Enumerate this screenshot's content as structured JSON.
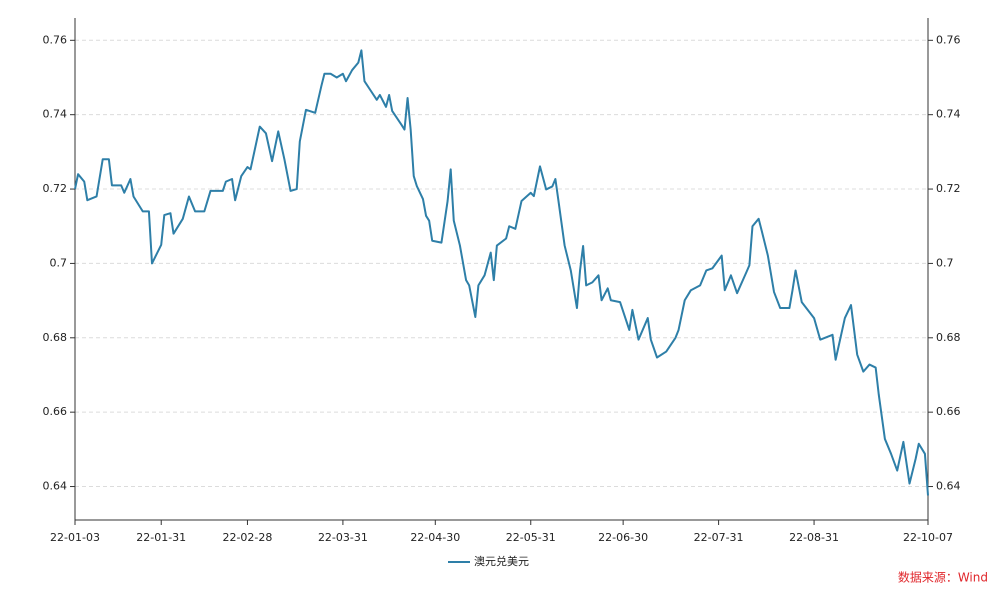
{
  "chart_data": {
    "type": "line",
    "x": [
      "22-01-03",
      "22-01-04",
      "22-01-06",
      "22-01-07",
      "22-01-10",
      "22-01-12",
      "22-01-14",
      "22-01-15",
      "22-01-18",
      "22-01-19",
      "22-01-21",
      "22-01-22",
      "22-01-25",
      "22-01-27",
      "22-01-28",
      "22-01-31",
      "22-02-01",
      "22-02-03",
      "22-02-04",
      "22-02-07",
      "22-02-09",
      "22-02-11",
      "22-02-14",
      "22-02-16",
      "22-02-20",
      "22-02-21",
      "22-02-23",
      "22-02-24",
      "22-02-26",
      "22-02-28",
      "22-03-01",
      "22-03-04",
      "22-03-06",
      "22-03-08",
      "22-03-10",
      "22-03-12",
      "22-03-14",
      "22-03-16",
      "22-03-17",
      "22-03-19",
      "22-03-22",
      "22-03-24",
      "22-03-25",
      "22-03-27",
      "22-03-29",
      "22-03-31",
      "22-04-01",
      "22-04-03",
      "22-04-05",
      "22-04-06",
      "22-04-07",
      "22-04-09",
      "22-04-11",
      "22-04-12",
      "22-04-14",
      "22-04-15",
      "22-04-16",
      "22-04-19",
      "22-04-20",
      "22-04-21",
      "22-04-22",
      "22-04-23",
      "22-04-24",
      "22-04-26",
      "22-04-27",
      "22-04-28",
      "22-04-29",
      "22-05-02",
      "22-05-04",
      "22-05-05",
      "22-05-06",
      "22-05-08",
      "22-05-10",
      "22-05-11",
      "22-05-13",
      "22-05-14",
      "22-05-16",
      "22-05-18",
      "22-05-19",
      "22-05-20",
      "22-05-23",
      "22-05-24",
      "22-05-26",
      "22-05-28",
      "22-05-31",
      "22-06-01",
      "22-06-03",
      "22-06-05",
      "22-06-07",
      "22-06-08",
      "22-06-09",
      "22-06-11",
      "22-06-13",
      "22-06-15",
      "22-06-16",
      "22-06-17",
      "22-06-18",
      "22-06-20",
      "22-06-22",
      "22-06-23",
      "22-06-25",
      "22-06-26",
      "22-06-29",
      "22-07-02",
      "22-07-03",
      "22-07-05",
      "22-07-08",
      "22-07-09",
      "22-07-11",
      "22-07-14",
      "22-07-17",
      "22-07-18",
      "22-07-20",
      "22-07-22",
      "22-07-25",
      "22-07-27",
      "22-07-29",
      "22-08-01",
      "22-08-02",
      "22-08-04",
      "22-08-06",
      "22-08-09",
      "22-08-10",
      "22-08-11",
      "22-08-13",
      "22-08-14",
      "22-08-16",
      "22-08-18",
      "22-08-20",
      "22-08-23",
      "22-08-24",
      "22-08-25",
      "22-08-27",
      "22-08-31",
      "22-09-02",
      "22-09-06",
      "22-09-07",
      "22-09-10",
      "22-09-12",
      "22-09-14",
      "22-09-16",
      "22-09-18",
      "22-09-20",
      "22-09-21",
      "22-09-23",
      "22-09-25",
      "22-09-27",
      "22-09-29",
      "22-10-01",
      "22-10-03",
      "22-10-04",
      "22-10-06",
      "22-10-07"
    ],
    "series": [
      {
        "name": "澳元兑美元",
        "color": "#2e7fa8",
        "values": [
          0.72,
          0.724,
          0.722,
          0.717,
          0.718,
          0.728,
          0.728,
          0.721,
          0.721,
          0.719,
          0.7227,
          0.718,
          0.714,
          0.714,
          0.7,
          0.705,
          0.713,
          0.7135,
          0.708,
          0.712,
          0.718,
          0.714,
          0.714,
          0.7195,
          0.7195,
          0.722,
          0.7227,
          0.717,
          0.7235,
          0.7259,
          0.7253,
          0.7368,
          0.735,
          0.7275,
          0.7355,
          0.728,
          0.7195,
          0.72,
          0.7328,
          0.7413,
          0.7405,
          0.7477,
          0.751,
          0.751,
          0.75,
          0.751,
          0.749,
          0.752,
          0.754,
          0.7573,
          0.749,
          0.7465,
          0.744,
          0.7453,
          0.7421,
          0.7453,
          0.741,
          0.7373,
          0.736,
          0.7445,
          0.736,
          0.7235,
          0.7208,
          0.7173,
          0.7128,
          0.7115,
          0.7061,
          0.7056,
          0.7168,
          0.7253,
          0.7115,
          0.7048,
          0.6955,
          0.6941,
          0.6856,
          0.6941,
          0.6968,
          0.7029,
          0.6955,
          0.7048,
          0.7067,
          0.71,
          0.7093,
          0.7168,
          0.719,
          0.7181,
          0.7261,
          0.7199,
          0.7207,
          0.7227,
          0.7168,
          0.7048,
          0.6981,
          0.688,
          0.6981,
          0.7047,
          0.6941,
          0.6949,
          0.6968,
          0.6901,
          0.6933,
          0.6901,
          0.6896,
          0.6821,
          0.6875,
          0.6795,
          0.6853,
          0.6795,
          0.6747,
          0.6763,
          0.68,
          0.6821,
          0.6901,
          0.6928,
          0.6941,
          0.6981,
          0.6987,
          0.7021,
          0.6928,
          0.6968,
          0.692,
          0.6976,
          0.6995,
          0.71,
          0.712,
          0.7088,
          0.7021,
          0.6923,
          0.688,
          0.688,
          0.6928,
          0.6981,
          0.6896,
          0.6853,
          0.6795,
          0.6808,
          0.6741,
          0.6853,
          0.6888,
          0.6755,
          0.6709,
          0.6728,
          0.672,
          0.6648,
          0.6528,
          0.6488,
          0.6443,
          0.652,
          0.6408,
          0.6475,
          0.6515,
          0.6488,
          0.6376
        ]
      }
    ],
    "xlim": [
      "22-01-03",
      "22-10-07"
    ],
    "xticks": [
      "22-01-03",
      "22-01-31",
      "22-02-28",
      "22-03-31",
      "22-04-30",
      "22-05-31",
      "22-06-30",
      "22-07-31",
      "22-08-31",
      "22-10-07"
    ],
    "ylim": [
      0.631,
      0.766
    ],
    "yticks": [
      0.64,
      0.66,
      0.68,
      0.7,
      0.72,
      0.74,
      0.76
    ],
    "y2lim": [
      0.631,
      0.766
    ],
    "y2ticks": [
      0.64,
      0.66,
      0.68,
      0.7,
      0.72,
      0.74,
      0.76
    ],
    "grid": true,
    "legend": "bottom",
    "source": "数据来源：Wind"
  }
}
